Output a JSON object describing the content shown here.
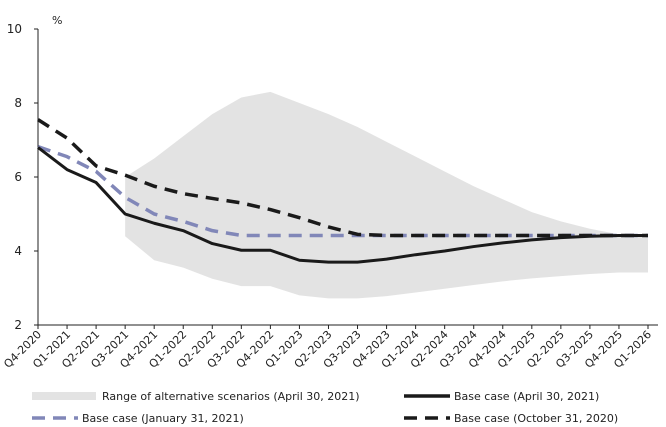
{
  "chart_data": {
    "type": "line",
    "ylabel": "%",
    "ylim": [
      2,
      10
    ],
    "yticks": [
      2,
      4,
      6,
      8,
      10
    ],
    "grid": false,
    "legend_position": "bottom",
    "categories": [
      "Q4-2020",
      "Q1-2021",
      "Q2-2021",
      "Q3-2021",
      "Q4-2021",
      "Q1-2022",
      "Q2-2022",
      "Q3-2022",
      "Q4-2022",
      "Q1-2023",
      "Q2-2023",
      "Q3-2023",
      "Q4-2023",
      "Q1-2024",
      "Q2-2024",
      "Q3-2024",
      "Q4-2024",
      "Q1-2025",
      "Q2-2025",
      "Q3-2025",
      "Q4-2025",
      "Q1-2026"
    ],
    "range": {
      "name": "Range of alternative scenarios (April 30, 2021)",
      "color": "#e3e3e3",
      "from_index": 3,
      "upper": [
        6.0,
        6.5,
        7.1,
        7.7,
        8.15,
        8.3,
        8.0,
        7.7,
        7.35,
        6.95,
        6.55,
        6.15,
        5.75,
        5.4,
        5.05,
        4.8,
        4.6,
        4.45,
        4.4
      ],
      "lower": [
        4.4,
        3.75,
        3.55,
        3.25,
        3.05,
        3.05,
        2.8,
        2.72,
        2.72,
        2.78,
        2.88,
        2.98,
        3.08,
        3.18,
        3.26,
        3.32,
        3.38,
        3.42,
        3.42
      ]
    },
    "series": [
      {
        "name": "Base case (April 30, 2021)",
        "color": "#1a1a1a",
        "style": "solid",
        "values": [
          6.8,
          6.2,
          5.85,
          5.0,
          4.75,
          4.55,
          4.2,
          4.02,
          4.02,
          3.75,
          3.7,
          3.7,
          3.78,
          3.9,
          4.0,
          4.12,
          4.22,
          4.3,
          4.36,
          4.4,
          4.42,
          4.42
        ]
      },
      {
        "name": "Base case (January 31, 2021)",
        "color": "#8187b8",
        "style": "dashed",
        "values": [
          6.82,
          6.55,
          6.15,
          5.45,
          5.0,
          4.8,
          4.55,
          4.42,
          4.42,
          4.42,
          4.42,
          4.42,
          4.42,
          4.42,
          4.42,
          4.42,
          4.42,
          4.42,
          4.42,
          4.42,
          4.42,
          4.42
        ]
      },
      {
        "name": "Base case (October 31, 2020)",
        "color": "#1a1a1a",
        "style": "dashed",
        "values": [
          7.55,
          7.05,
          6.3,
          6.05,
          5.75,
          5.55,
          5.42,
          5.3,
          5.12,
          4.9,
          4.65,
          4.45,
          4.42,
          4.42,
          4.42,
          4.42,
          4.42,
          4.42,
          4.42,
          4.42,
          4.42,
          4.42
        ]
      }
    ]
  }
}
